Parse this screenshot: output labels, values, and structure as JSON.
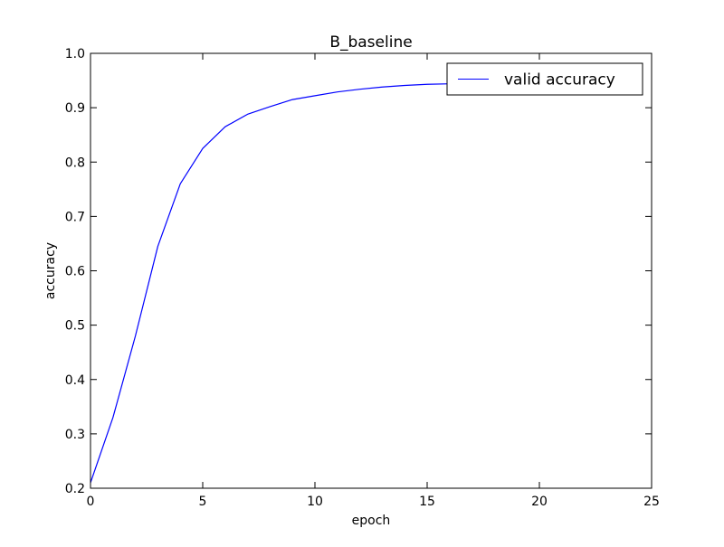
{
  "chart_data": {
    "type": "line",
    "title": "B_baseline",
    "xlabel": "epoch",
    "ylabel": "accuracy",
    "xlim": [
      0,
      25
    ],
    "ylim": [
      0.2,
      1.0
    ],
    "x_ticks": [
      "0",
      "5",
      "10",
      "15",
      "20",
      "25"
    ],
    "y_ticks": [
      "0.2",
      "0.3",
      "0.4",
      "0.5",
      "0.6",
      "0.7",
      "0.8",
      "0.9",
      "1.0"
    ],
    "grid": false,
    "legend_position": "upper right",
    "series": [
      {
        "name": "valid accuracy",
        "color": "#0000ff",
        "x": [
          0,
          1,
          2,
          3,
          4,
          5,
          6,
          7,
          8,
          9,
          10,
          11,
          12,
          13,
          14,
          15,
          16,
          17,
          18,
          19
        ],
        "y": [
          0.21,
          0.33,
          0.48,
          0.645,
          0.76,
          0.825,
          0.865,
          0.888,
          0.902,
          0.915,
          0.922,
          0.929,
          0.934,
          0.938,
          0.941,
          0.943,
          0.944,
          0.945,
          0.946,
          0.946
        ]
      }
    ]
  }
}
